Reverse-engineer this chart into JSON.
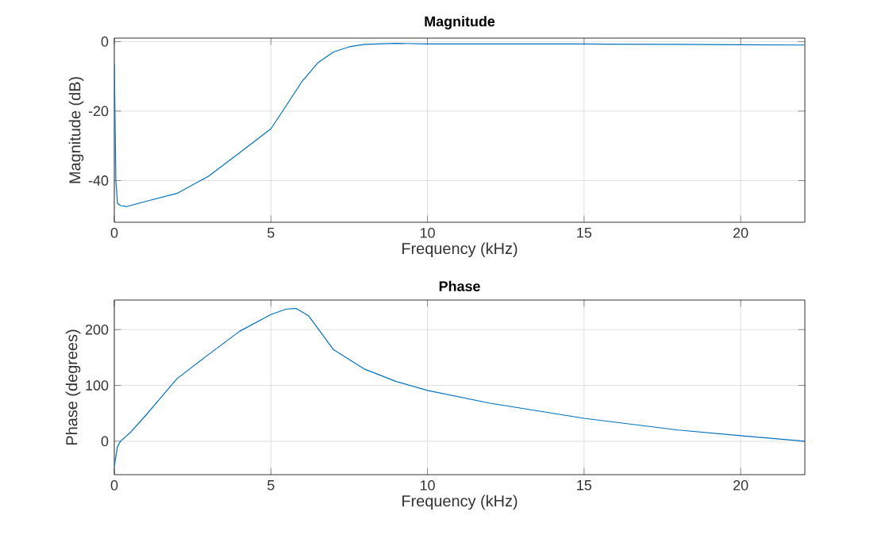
{
  "chart_data": [
    {
      "type": "line",
      "title": "Magnitude",
      "xlabel": "Frequency (kHz)",
      "ylabel": "Magnitude (dB)",
      "color": "#0072bd",
      "grid": true,
      "x": [
        0,
        0.05,
        0.1,
        0.2,
        0.4,
        1,
        2,
        3,
        4,
        5,
        5.5,
        6,
        6.5,
        7,
        7.5,
        8,
        9,
        10,
        12,
        15,
        18,
        20,
        22.05
      ],
      "values": [
        -6.4,
        -40,
        -46.5,
        -47.2,
        -47.5,
        -46,
        -43.7,
        -38.8,
        -32,
        -25.1,
        -18.3,
        -11.4,
        -6.1,
        -3,
        -1.5,
        -0.8,
        -0.5,
        -0.7,
        -0.7,
        -0.7,
        -0.8,
        -0.9,
        -1
      ],
      "xlim": [
        0,
        22.05
      ],
      "ylim": [
        -52,
        1
      ],
      "xticks": [
        0,
        5,
        10,
        15,
        20
      ],
      "yticks": [
        -40,
        -20,
        0
      ]
    },
    {
      "type": "line",
      "title": "Phase",
      "xlabel": "Frequency (kHz)",
      "ylabel": "Phase (degrees)",
      "color": "#0072bd",
      "grid": true,
      "x": [
        0,
        0.1,
        0.2,
        0.5,
        1,
        2,
        3,
        4,
        5,
        5.5,
        5.8,
        6.2,
        7,
        8,
        9,
        10,
        12,
        15,
        18,
        20,
        22.05
      ],
      "values": [
        -45,
        -10,
        0,
        15,
        46,
        112,
        155,
        197,
        227,
        237,
        238,
        225,
        164,
        129,
        107,
        91,
        68,
        41,
        20,
        10,
        0
      ],
      "xlim": [
        0,
        22.05
      ],
      "ylim": [
        -60,
        253
      ],
      "xticks": [
        0,
        5,
        10,
        15,
        20
      ],
      "yticks": [
        0,
        100,
        200
      ]
    }
  ]
}
